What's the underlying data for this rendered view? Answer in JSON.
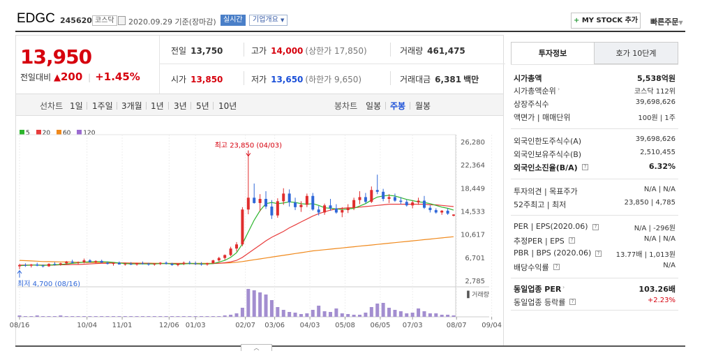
{
  "header": {
    "name": "EDGC",
    "code": "245620",
    "market": "코스닥",
    "date": "2020.09.29 기준(장마감)",
    "realtime": "실시간",
    "company_info": "기업개요",
    "my_stock": "MY STOCK 추가",
    "quick_order": "빠른주문"
  },
  "price": {
    "current": "13,950",
    "change_label": "전일대비",
    "change": "200",
    "change_pct": "+1.45%"
  },
  "stats": {
    "prev_label": "전일",
    "prev": "13,750",
    "high_label": "고가",
    "high": "14,000",
    "upper_limit": "(상한가 17,850)",
    "volume_label": "거래량",
    "volume": "461,475",
    "open_label": "시가",
    "open": "13,850",
    "low_label": "저가",
    "low": "13,650",
    "lower_limit": "(하한가 9,650)",
    "amount_label": "거래대금",
    "amount": "6,381",
    "amount_unit": "백만"
  },
  "period_bar": {
    "line_label": "선차트",
    "line_items": [
      "1일",
      "1주일",
      "3개월",
      "1년",
      "3년",
      "5년",
      "10년"
    ],
    "candle_label": "봉차트",
    "candle_items": [
      "일봉",
      "주봉",
      "월봉"
    ],
    "candle_active": "주봉"
  },
  "chart_data": {
    "type": "candlestick",
    "legend": [
      "5",
      "20",
      "60",
      "120"
    ],
    "legend_colors": [
      "#2db52d",
      "#e83c3c",
      "#f0891c",
      "#9b6bd1"
    ],
    "y_ticks": [
      "26,280",
      "22,364",
      "18,449",
      "14,533",
      "10,617",
      "6,701",
      "2,785"
    ],
    "ylim": [
      2785,
      26280
    ],
    "x_ticks": [
      "08/16",
      "10/04",
      "11/01",
      "12/06",
      "01/03",
      "02/07",
      "03/06",
      "04/03",
      "05/08",
      "06/05",
      "07/03",
      "08/07",
      "09/04"
    ],
    "high_note": "최고 23,850 (04/03)",
    "low_note": "최저 4,700 (08/16)",
    "volume_label": "거래량",
    "candles": [
      [
        5200,
        5600,
        4700,
        5400
      ],
      [
        5400,
        5700,
        5100,
        5300
      ],
      [
        5300,
        5600,
        5000,
        5500
      ],
      [
        5500,
        5800,
        5200,
        5300
      ],
      [
        5300,
        5500,
        5000,
        5200
      ],
      [
        5200,
        5700,
        5100,
        5600
      ],
      [
        5600,
        5900,
        5300,
        5500
      ],
      [
        5500,
        5800,
        5300,
        5700
      ],
      [
        5700,
        6100,
        5500,
        6000
      ],
      [
        6000,
        6300,
        5700,
        5800
      ],
      [
        5800,
        6000,
        5500,
        5900
      ],
      [
        5900,
        6500,
        5700,
        6200
      ],
      [
        6200,
        6400,
        5800,
        5900
      ],
      [
        5900,
        6200,
        5700,
        6100
      ],
      [
        6100,
        6300,
        5800,
        5800
      ],
      [
        5800,
        6000,
        5500,
        5600
      ],
      [
        5600,
        5900,
        5300,
        5800
      ],
      [
        5800,
        6000,
        5500,
        5500
      ],
      [
        5500,
        5800,
        5300,
        5600
      ],
      [
        5600,
        5900,
        5400,
        5500
      ],
      [
        5500,
        5800,
        5300,
        5700
      ],
      [
        5700,
        6000,
        5500,
        5600
      ],
      [
        5600,
        5800,
        5300,
        5500
      ],
      [
        5500,
        5700,
        5300,
        5600
      ],
      [
        5600,
        5900,
        5400,
        5800
      ],
      [
        5800,
        6000,
        5500,
        5600
      ],
      [
        5600,
        5800,
        5300,
        5400
      ],
      [
        5400,
        5700,
        5200,
        5600
      ],
      [
        5600,
        6000,
        5400,
        5800
      ],
      [
        5800,
        6100,
        5500,
        5700
      ],
      [
        5700,
        6000,
        5400,
        5600
      ],
      [
        5600,
        5900,
        5300,
        5500
      ],
      [
        5500,
        5800,
        5300,
        5700
      ],
      [
        5700,
        6300,
        5600,
        6200
      ],
      [
        6200,
        6800,
        6000,
        6600
      ],
      [
        6600,
        7200,
        6300,
        7100
      ],
      [
        7100,
        8500,
        6900,
        8200
      ],
      [
        8200,
        9300,
        7700,
        8900
      ],
      [
        8900,
        15200,
        8600,
        14800
      ],
      [
        14800,
        23850,
        14000,
        16800
      ],
      [
        16800,
        19200,
        15800,
        15900
      ],
      [
        15900,
        17400,
        14500,
        16600
      ],
      [
        16600,
        17900,
        14900,
        15300
      ],
      [
        15300,
        16400,
        13200,
        13800
      ],
      [
        13800,
        16700,
        13400,
        16200
      ],
      [
        16200,
        18400,
        15600,
        17500
      ],
      [
        17500,
        18200,
        15300,
        16000
      ],
      [
        16000,
        16800,
        14700,
        15200
      ],
      [
        15200,
        16200,
        14400,
        15600
      ],
      [
        15600,
        17500,
        15200,
        17100
      ],
      [
        17100,
        17600,
        14600,
        14800
      ],
      [
        14800,
        15400,
        13800,
        14300
      ],
      [
        14300,
        15800,
        13900,
        15500
      ],
      [
        15500,
        16600,
        14600,
        15000
      ],
      [
        15000,
        15700,
        14100,
        14300
      ],
      [
        14300,
        15200,
        13500,
        14700
      ],
      [
        14700,
        15700,
        14200,
        15100
      ],
      [
        15100,
        16800,
        14700,
        16400
      ],
      [
        16400,
        17900,
        15700,
        16900
      ],
      [
        16900,
        17600,
        15800,
        16100
      ],
      [
        16100,
        18700,
        15900,
        18100
      ],
      [
        18100,
        20700,
        17400,
        17800
      ],
      [
        17800,
        18300,
        16200,
        16600
      ],
      [
        16600,
        17400,
        15900,
        16900
      ],
      [
        16900,
        17500,
        16100,
        16300
      ],
      [
        16300,
        16900,
        15700,
        16100
      ],
      [
        16100,
        16500,
        15300,
        15500
      ],
      [
        15500,
        16300,
        15000,
        16000
      ],
      [
        16000,
        16800,
        15600,
        16300
      ],
      [
        16300,
        17100,
        14900,
        15100
      ],
      [
        15100,
        15500,
        14300,
        14700
      ],
      [
        14700,
        15000,
        14100,
        14300
      ],
      [
        14300,
        14700,
        13900,
        14600
      ],
      [
        14600,
        15000,
        13900,
        14100
      ],
      [
        13750,
        14000,
        13650,
        13950
      ]
    ],
    "ma5": [
      5300,
      5350,
      5400,
      5400,
      5350,
      5400,
      5450,
      5500,
      5600,
      5700,
      5800,
      5900,
      5950,
      6000,
      6000,
      5950,
      5850,
      5750,
      5650,
      5600,
      5600,
      5600,
      5600,
      5600,
      5650,
      5650,
      5600,
      5550,
      5600,
      5650,
      5650,
      5600,
      5600,
      5650,
      5900,
      6200,
      6700,
      7500,
      9000,
      11000,
      13000,
      14600,
      15800,
      16000,
      15800,
      15900,
      16100,
      16000,
      15800,
      15700,
      15800,
      15500,
      15100,
      15000,
      14900,
      14800,
      14900,
      15000,
      15400,
      15800,
      16400,
      16900,
      17100,
      17200,
      17100,
      16800,
      16500,
      16300,
      16100,
      16000,
      15800,
      15500,
      15200,
      15000,
      14700
    ],
    "ma20": [
      5400,
      5400,
      5400,
      5400,
      5400,
      5400,
      5400,
      5450,
      5450,
      5500,
      5500,
      5550,
      5600,
      5650,
      5700,
      5700,
      5750,
      5750,
      5750,
      5700,
      5700,
      5700,
      5700,
      5650,
      5650,
      5650,
      5650,
      5650,
      5650,
      5650,
      5600,
      5600,
      5600,
      5650,
      5700,
      5800,
      5950,
      6200,
      6700,
      7400,
      8100,
      8800,
      9500,
      10100,
      10600,
      11100,
      11700,
      12200,
      12700,
      13200,
      13700,
      14100,
      14400,
      14700,
      14900,
      15000,
      15100,
      15100,
      15200,
      15300,
      15400,
      15500,
      15600,
      15700,
      15700,
      15700,
      15700,
      15700,
      15700,
      15700,
      15600,
      15600,
      15500,
      15400,
      15300
    ],
    "ma60": [
      6200,
      6150,
      6100,
      6050,
      6000,
      5980,
      5960,
      5940,
      5920,
      5900,
      5880,
      5860,
      5840,
      5820,
      5800,
      5790,
      5780,
      5770,
      5760,
      5750,
      5740,
      5730,
      5720,
      5710,
      5700,
      5700,
      5700,
      5700,
      5700,
      5700,
      5700,
      5700,
      5700,
      5700,
      5720,
      5750,
      5800,
      5880,
      6000,
      6150,
      6300,
      6450,
      6600,
      6750,
      6900,
      7050,
      7200,
      7350,
      7500,
      7650,
      7800,
      7900,
      8000,
      8100,
      8200,
      8300,
      8400,
      8500,
      8600,
      8700,
      8800,
      8900,
      9000,
      9100,
      9200,
      9300,
      9400,
      9500,
      9600,
      9700,
      9800,
      9900,
      10000,
      10100,
      10200
    ],
    "volume": [
      2,
      1,
      1,
      2,
      1,
      1,
      1,
      2,
      1,
      1,
      1,
      1,
      1,
      1,
      1,
      1,
      1,
      1,
      1,
      1,
      1,
      1,
      1,
      1,
      1,
      1,
      1,
      1,
      1,
      1,
      1,
      1,
      1,
      1,
      1,
      2,
      3,
      5,
      13,
      40,
      38,
      35,
      32,
      24,
      14,
      10,
      7,
      6,
      4,
      5,
      10,
      16,
      8,
      7,
      12,
      5,
      4,
      3,
      3,
      6,
      14,
      19,
      20,
      13,
      10,
      8,
      5,
      6,
      12,
      8,
      5,
      5,
      3,
      3,
      2
    ]
  },
  "side": {
    "tab_active": "투자정보",
    "tab_other": "호가 10단계",
    "rows": [
      {
        "l": "시가총액",
        "r": "5,538억원",
        "bold": true
      },
      {
        "l": "시가총액순위",
        "r": "코스닥 112위",
        "arrow": true
      },
      {
        "l": "상장주식수",
        "r": "39,698,626"
      },
      {
        "l": "액면가 | 매매단위",
        "r": "100원 | 1주"
      },
      {
        "l": "외국인한도주식수(A)",
        "r": "39,698,626"
      },
      {
        "l": "외국인보유주식수(B)",
        "r": "2,510,455"
      },
      {
        "l": "외국인소진율(B/A)",
        "r": "6.32%",
        "bold": true,
        "q": true
      },
      {
        "l": "투자의견 | 목표주가",
        "r": "N/A | N/A"
      },
      {
        "l": "52주최고 | 최저",
        "r": "23,850 | 4,785"
      },
      {
        "l": "PER | EPS(2020.06)",
        "r": "N/A | -296원",
        "q": true
      },
      {
        "l": "추정PER | EPS",
        "r": "N/A | N/A",
        "q": true
      },
      {
        "l": "PBR | BPS (2020.06)",
        "r": "13.77배 | 1,013원",
        "q": true
      },
      {
        "l": "배당수익률",
        "r": "N/A",
        "q": true
      },
      {
        "l": "동일업종 PER",
        "r": "103.26배",
        "bold": true,
        "arrow": true
      },
      {
        "l": "동일업종 등락률",
        "r": "+2.23%",
        "red": true,
        "q": true
      }
    ]
  }
}
